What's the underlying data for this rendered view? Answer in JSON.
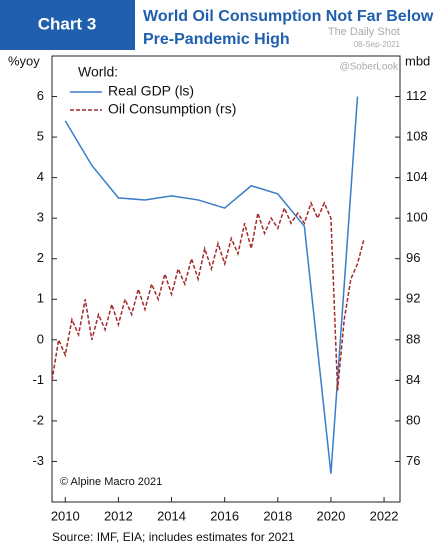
{
  "chart_data": {
    "type": "line",
    "badge": "Chart 3",
    "title": [
      "World Oil Consumption Not Far Below",
      "Pre-Pandemic High"
    ],
    "watermark": [
      "The Daily Shot",
      "08-Sep-2021",
      "@SoberLook"
    ],
    "ylabel": "%yoy",
    "y2label": "mbd",
    "legend_title": "World:",
    "annotation": "© Alpine Macro 2021",
    "source": "Source: IMF, EIA; includes estimates for 2021",
    "xlim": [
      2009.5,
      2022.6
    ],
    "xticks": [
      2010,
      2012,
      2014,
      2016,
      2018,
      2020,
      2022
    ],
    "ylim": [
      -4,
      7
    ],
    "yticks": [
      -3,
      -2,
      -1,
      0,
      1,
      2,
      3,
      4,
      5,
      6
    ],
    "y2lim": [
      72,
      116
    ],
    "y2ticks": [
      76,
      80,
      84,
      88,
      92,
      96,
      100,
      104,
      108,
      112
    ],
    "grid": false,
    "series": [
      {
        "name": "Real GDP (ls)",
        "color": "#3a7dc9",
        "dash": false,
        "x": [
          2010,
          2011,
          2012,
          2013,
          2014,
          2015,
          2016,
          2017,
          2018,
          2019,
          2020,
          2021
        ],
        "values": [
          5.4,
          4.3,
          3.5,
          3.45,
          3.55,
          3.45,
          3.25,
          3.8,
          3.6,
          2.8,
          -3.3,
          6.0
        ]
      },
      {
        "name": "Oil Consumption (rs)",
        "color": "#a52a2a",
        "dash": true,
        "axis": "y2",
        "x": [
          2009.5,
          2009.75,
          2010,
          2010.25,
          2010.5,
          2010.75,
          2011,
          2011.25,
          2011.5,
          2011.75,
          2012,
          2012.25,
          2012.5,
          2012.75,
          2013,
          2013.25,
          2013.5,
          2013.75,
          2014,
          2014.25,
          2014.5,
          2014.75,
          2015,
          2015.25,
          2015.5,
          2015.75,
          2016,
          2016.25,
          2016.5,
          2016.75,
          2017,
          2017.25,
          2017.5,
          2017.75,
          2018,
          2018.25,
          2018.5,
          2018.75,
          2019,
          2019.25,
          2019.5,
          2019.75,
          2020,
          2020.25,
          2020.5,
          2020.75,
          2021,
          2021.25
        ],
        "values": [
          84,
          88,
          86.5,
          90,
          88.5,
          92,
          88,
          90.5,
          89,
          91.5,
          89.5,
          92,
          90.5,
          93,
          91,
          93.5,
          92,
          94.5,
          92.5,
          95,
          93.5,
          96,
          94,
          97,
          95,
          97.5,
          95.5,
          98,
          96.5,
          99.5,
          97,
          100.5,
          98.5,
          100,
          99,
          101,
          99.5,
          100.5,
          99.5,
          101.5,
          100,
          101.5,
          100,
          83,
          90,
          94,
          95.5,
          98
        ]
      }
    ]
  }
}
